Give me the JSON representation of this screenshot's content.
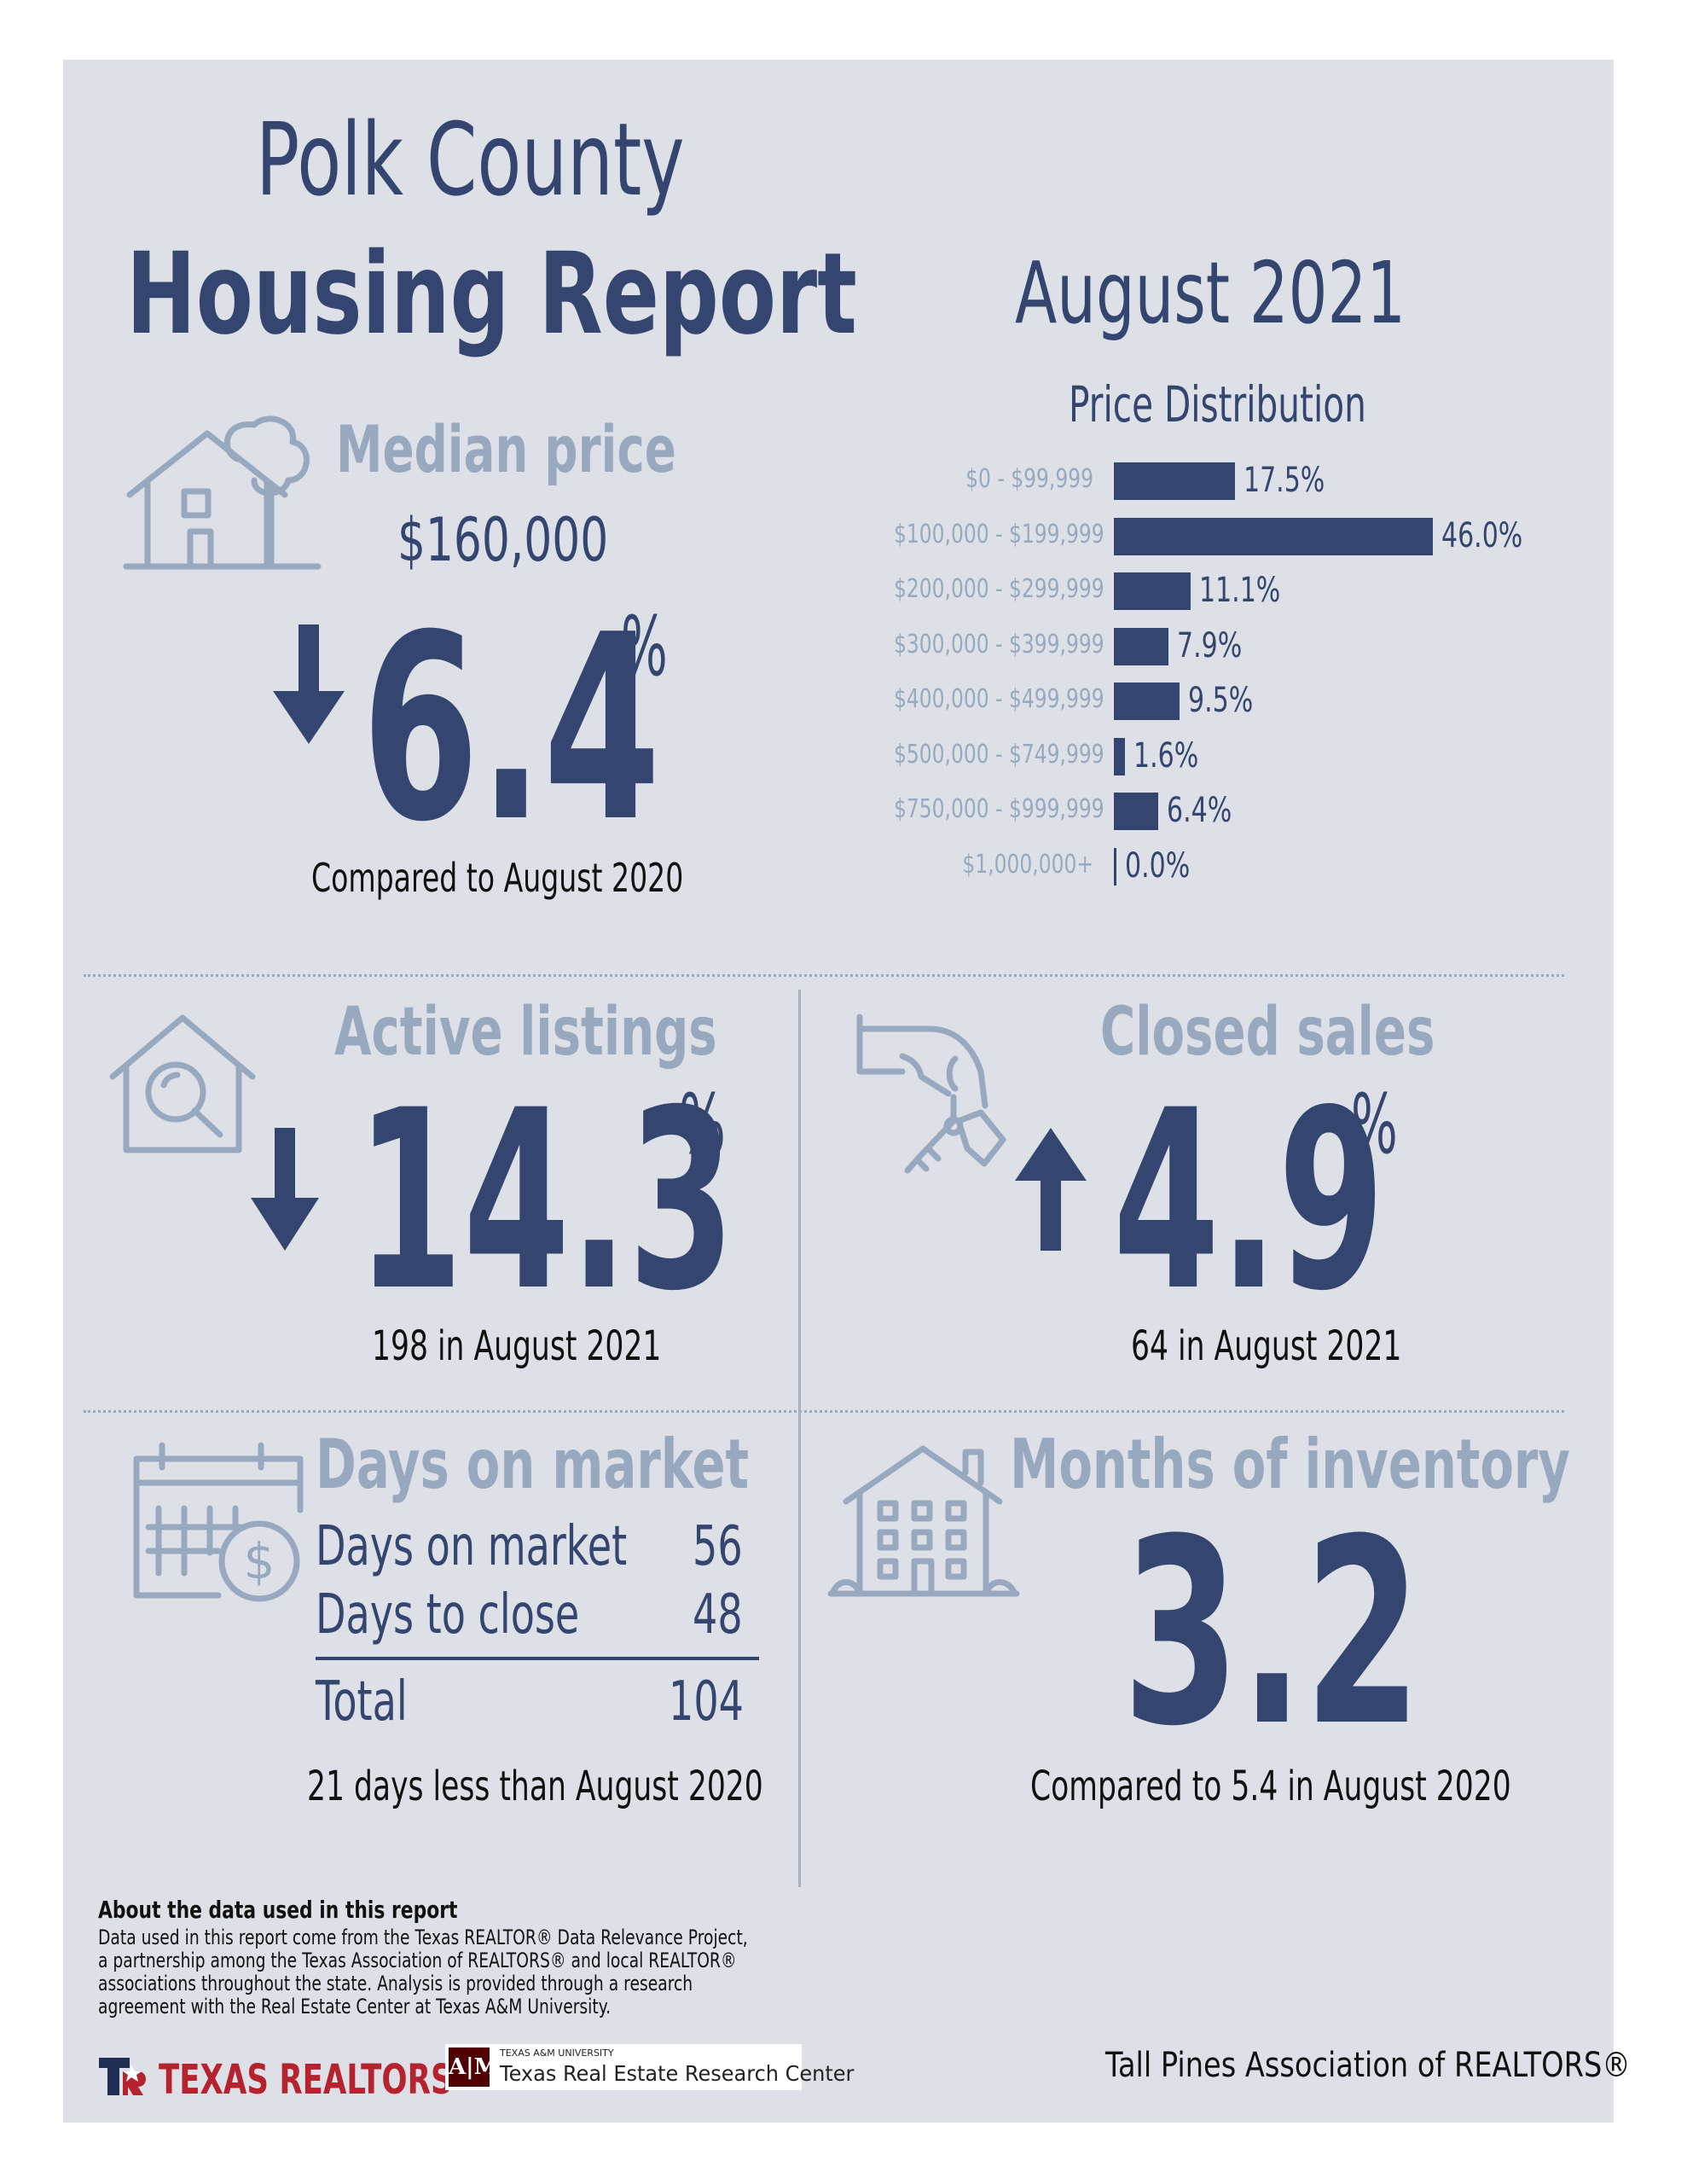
{
  "header": {
    "title_line1": "Polk County",
    "title_line2": "Housing Report",
    "date": "August 2021"
  },
  "median_price": {
    "heading": "Median price",
    "value": "$160,000",
    "change": "6.4",
    "unit": "%",
    "direction": "down",
    "note": "Compared to August 2020"
  },
  "price_distribution": {
    "title": "Price Distribution",
    "chart_data": {
      "type": "bar",
      "title": "Price Distribution",
      "categories": [
        "$0 - $99,999",
        "$100,000 - $199,999",
        "$200,000 - $299,999",
        "$300,000 - $399,999",
        "$400,000 - $499,999",
        "$500,000 - $749,999",
        "$750,000 - $999,999",
        "$1,000,000+"
      ],
      "values": [
        17.5,
        46.0,
        11.1,
        7.9,
        9.5,
        1.6,
        6.4,
        0.0
      ],
      "value_labels": [
        "17.5%",
        "46.0%",
        "11.1%",
        "7.9%",
        "9.5%",
        "1.6%",
        "6.4%",
        "0.0%"
      ],
      "orientation": "horizontal",
      "bar_color": "#34456f"
    }
  },
  "active_listings": {
    "heading": "Active listings",
    "change": "14.3",
    "unit": "%",
    "direction": "down",
    "note": "198 in August 2021"
  },
  "closed_sales": {
    "heading": "Closed sales",
    "change": "4.9",
    "unit": "%",
    "direction": "up",
    "note": "64 in August 2021"
  },
  "days_on_market": {
    "heading": "Days on market",
    "rows": [
      {
        "label": "Days on market",
        "value": "56"
      },
      {
        "label": "Days to close",
        "value": "48"
      }
    ],
    "total_label": "Total",
    "total_value": "104",
    "note": "21 days less than August 2020"
  },
  "months_inventory": {
    "heading": "Months of inventory",
    "value": "3.2",
    "note": "Compared to 5.4 in August 2020"
  },
  "footer": {
    "about_title": "About the data used in this report",
    "about_text": "Data used in this report come from the Texas REALTOR® Data Relevance Project, a partnership among the Texas Association of REALTORS® and local REALTOR® associations throughout the state. Analysis is provided through a research agreement with the Real Estate Center at Texas A&M University.",
    "logo1_text": "TEXAS REALTORS",
    "logo2_small": "TEXAS A&M UNIVERSITY",
    "logo2_text": "Texas Real Estate Research Center",
    "association": "Tall Pines Association of REALTORS®"
  },
  "colors": {
    "background": "#dde1e7",
    "navy": "#34456f",
    "grey": "#97a8bf",
    "red": "#b5232e",
    "maroon": "#500000"
  },
  "icons": [
    "house-tree-icon",
    "house-search-icon",
    "hand-keys-icon",
    "calendar-dollar-icon",
    "apartment-icon",
    "arrow-down-icon",
    "arrow-up-icon"
  ]
}
